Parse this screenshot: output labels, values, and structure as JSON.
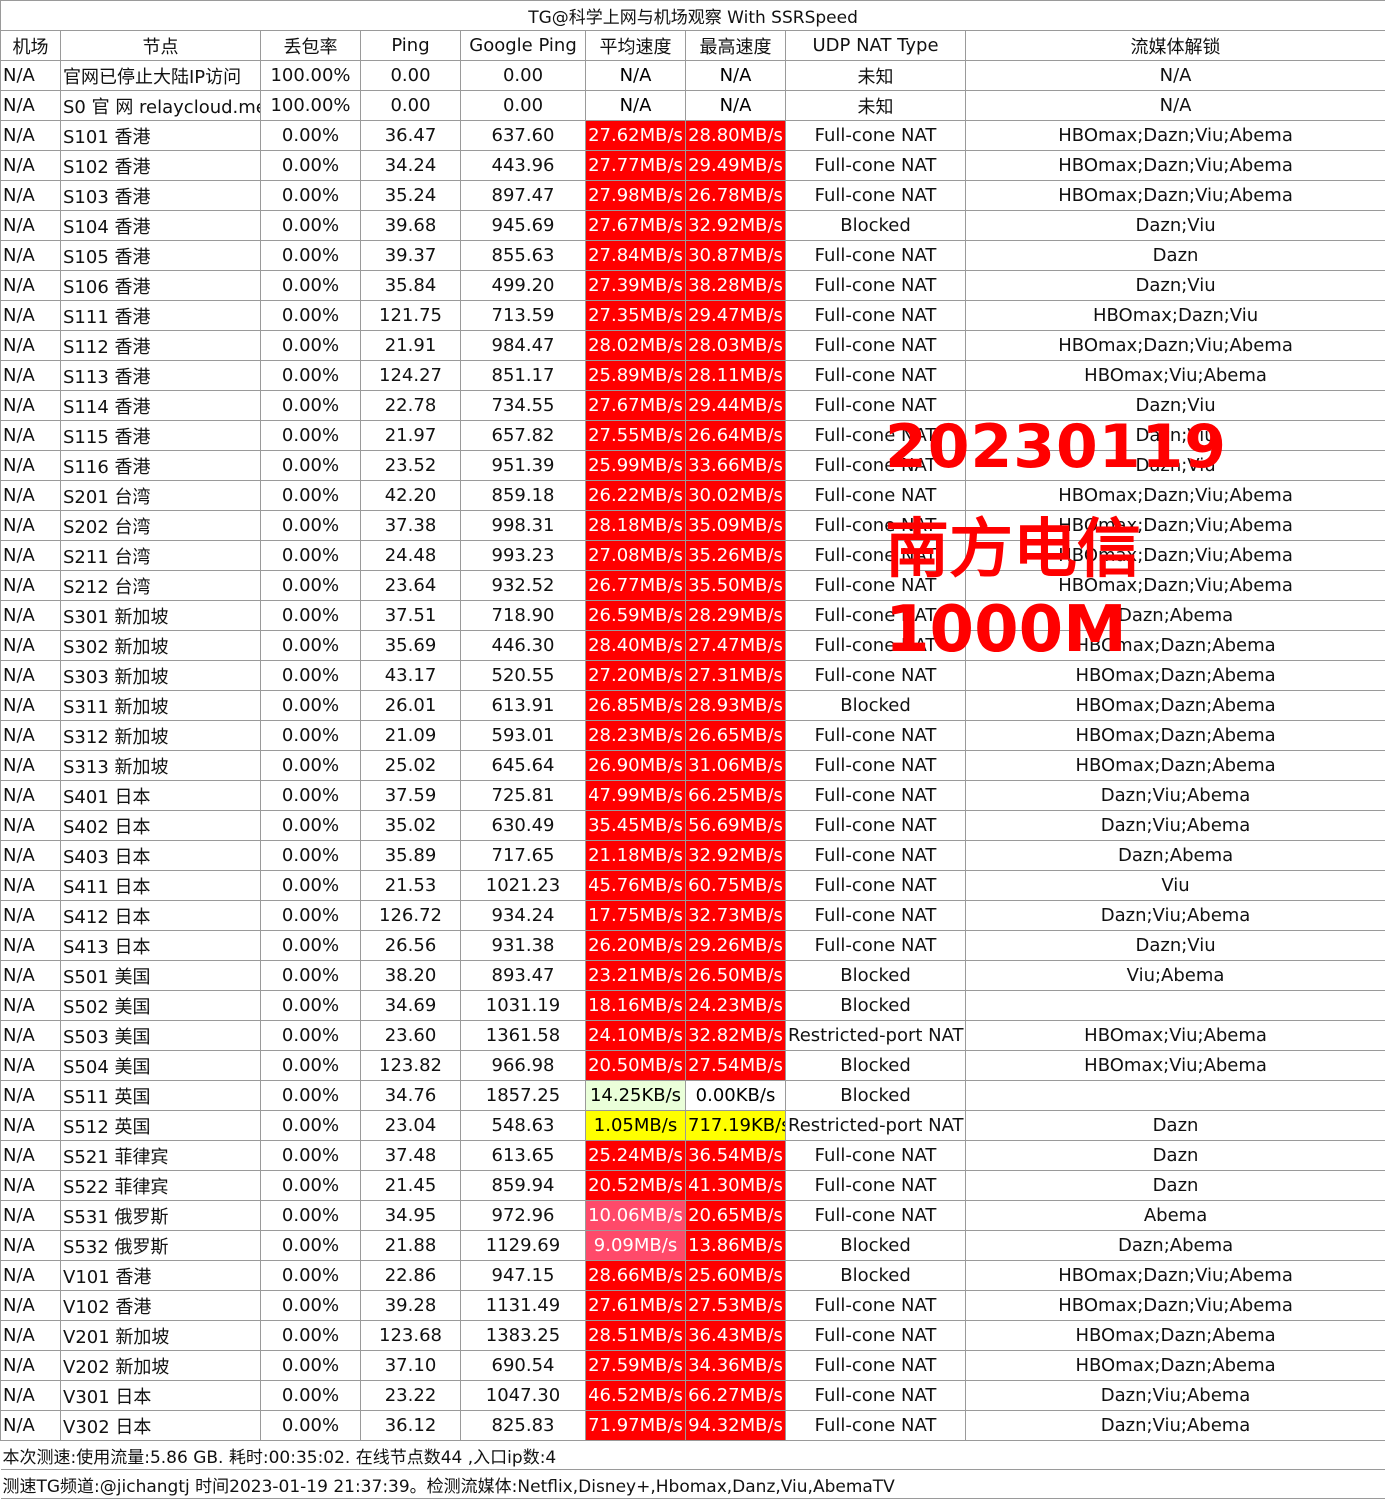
{
  "title": "TG@科学上网与机场观察 With SSRSpeed",
  "headers": [
    "机场",
    "节点",
    "丢包率",
    "Ping",
    "Google Ping",
    "平均速度",
    "最高速度",
    "UDP NAT Type",
    "流媒体解锁"
  ],
  "colors": {
    "red": "#ff0000",
    "pink": "#ff4a6a",
    "yellow": "#ffff00",
    "lightgreen": "#eaffd9",
    "watermark": "#ff0000"
  },
  "rows": [
    {
      "airport": "N/A",
      "node": "官网已停止大陆IP访问",
      "loss": "100.00%",
      "ping": "0.00",
      "gping": "0.00",
      "avg": "N/A",
      "max": "N/A",
      "nat": "未知",
      "media": "N/A",
      "avg_color": "plain",
      "max_color": "plain"
    },
    {
      "airport": "N/A",
      "node": "S0 官 网 relaycloud.me",
      "loss": "100.00%",
      "ping": "0.00",
      "gping": "0.00",
      "avg": "N/A",
      "max": "N/A",
      "nat": "未知",
      "media": "N/A",
      "avg_color": "plain",
      "max_color": "plain"
    },
    {
      "airport": "N/A",
      "node": "S101 香港",
      "loss": "0.00%",
      "ping": "36.47",
      "gping": "637.60",
      "avg": "27.62MB/s",
      "max": "28.80MB/s",
      "nat": "Full-cone NAT",
      "media": "HBOmax;Dazn;Viu;Abema",
      "avg_color": "red",
      "max_color": "red"
    },
    {
      "airport": "N/A",
      "node": "S102 香港",
      "loss": "0.00%",
      "ping": "34.24",
      "gping": "443.96",
      "avg": "27.77MB/s",
      "max": "29.49MB/s",
      "nat": "Full-cone NAT",
      "media": "HBOmax;Dazn;Viu;Abema",
      "avg_color": "red",
      "max_color": "red"
    },
    {
      "airport": "N/A",
      "node": "S103 香港",
      "loss": "0.00%",
      "ping": "35.24",
      "gping": "897.47",
      "avg": "27.98MB/s",
      "max": "26.78MB/s",
      "nat": "Full-cone NAT",
      "media": "HBOmax;Dazn;Viu;Abema",
      "avg_color": "red",
      "max_color": "red"
    },
    {
      "airport": "N/A",
      "node": "S104 香港",
      "loss": "0.00%",
      "ping": "39.68",
      "gping": "945.69",
      "avg": "27.67MB/s",
      "max": "32.92MB/s",
      "nat": "Blocked",
      "media": "Dazn;Viu",
      "avg_color": "red",
      "max_color": "red"
    },
    {
      "airport": "N/A",
      "node": "S105 香港",
      "loss": "0.00%",
      "ping": "39.37",
      "gping": "855.63",
      "avg": "27.84MB/s",
      "max": "30.87MB/s",
      "nat": "Full-cone NAT",
      "media": "Dazn",
      "avg_color": "red",
      "max_color": "red"
    },
    {
      "airport": "N/A",
      "node": "S106 香港",
      "loss": "0.00%",
      "ping": "35.84",
      "gping": "499.20",
      "avg": "27.39MB/s",
      "max": "38.28MB/s",
      "nat": "Full-cone NAT",
      "media": "Dazn;Viu",
      "avg_color": "red",
      "max_color": "red"
    },
    {
      "airport": "N/A",
      "node": "S111 香港",
      "loss": "0.00%",
      "ping": "121.75",
      "gping": "713.59",
      "avg": "27.35MB/s",
      "max": "29.47MB/s",
      "nat": "Full-cone NAT",
      "media": "HBOmax;Dazn;Viu",
      "avg_color": "red",
      "max_color": "red"
    },
    {
      "airport": "N/A",
      "node": "S112 香港",
      "loss": "0.00%",
      "ping": "21.91",
      "gping": "984.47",
      "avg": "28.02MB/s",
      "max": "28.03MB/s",
      "nat": "Full-cone NAT",
      "media": "HBOmax;Dazn;Viu;Abema",
      "avg_color": "red",
      "max_color": "red"
    },
    {
      "airport": "N/A",
      "node": "S113 香港",
      "loss": "0.00%",
      "ping": "124.27",
      "gping": "851.17",
      "avg": "25.89MB/s",
      "max": "28.11MB/s",
      "nat": "Full-cone NAT",
      "media": "HBOmax;Viu;Abema",
      "avg_color": "red",
      "max_color": "red"
    },
    {
      "airport": "N/A",
      "node": "S114 香港",
      "loss": "0.00%",
      "ping": "22.78",
      "gping": "734.55",
      "avg": "27.67MB/s",
      "max": "29.44MB/s",
      "nat": "Full-cone NAT",
      "media": "Dazn;Viu",
      "avg_color": "red",
      "max_color": "red"
    },
    {
      "airport": "N/A",
      "node": "S115 香港",
      "loss": "0.00%",
      "ping": "21.97",
      "gping": "657.82",
      "avg": "27.55MB/s",
      "max": "26.64MB/s",
      "nat": "Full-cone NAT",
      "media": "Dazn;Viu",
      "avg_color": "red",
      "max_color": "red"
    },
    {
      "airport": "N/A",
      "node": "S116 香港",
      "loss": "0.00%",
      "ping": "23.52",
      "gping": "951.39",
      "avg": "25.99MB/s",
      "max": "33.66MB/s",
      "nat": "Full-cone NAT",
      "media": "Dazn;Viu",
      "avg_color": "red",
      "max_color": "red"
    },
    {
      "airport": "N/A",
      "node": "S201 台湾",
      "loss": "0.00%",
      "ping": "42.20",
      "gping": "859.18",
      "avg": "26.22MB/s",
      "max": "30.02MB/s",
      "nat": "Full-cone NAT",
      "media": "HBOmax;Dazn;Viu;Abema",
      "avg_color": "red",
      "max_color": "red"
    },
    {
      "airport": "N/A",
      "node": "S202 台湾",
      "loss": "0.00%",
      "ping": "37.38",
      "gping": "998.31",
      "avg": "28.18MB/s",
      "max": "35.09MB/s",
      "nat": "Full-cone NAT",
      "media": "HBOmax;Dazn;Viu;Abema",
      "avg_color": "red",
      "max_color": "red"
    },
    {
      "airport": "N/A",
      "node": "S211 台湾",
      "loss": "0.00%",
      "ping": "24.48",
      "gping": "993.23",
      "avg": "27.08MB/s",
      "max": "35.26MB/s",
      "nat": "Full-cone NAT",
      "media": "HBOmax;Dazn;Viu;Abema",
      "avg_color": "red",
      "max_color": "red"
    },
    {
      "airport": "N/A",
      "node": "S212 台湾",
      "loss": "0.00%",
      "ping": "23.64",
      "gping": "932.52",
      "avg": "26.77MB/s",
      "max": "35.50MB/s",
      "nat": "Full-cone NAT",
      "media": "HBOmax;Dazn;Viu;Abema",
      "avg_color": "red",
      "max_color": "red"
    },
    {
      "airport": "N/A",
      "node": "S301 新加坡",
      "loss": "0.00%",
      "ping": "37.51",
      "gping": "718.90",
      "avg": "26.59MB/s",
      "max": "28.29MB/s",
      "nat": "Full-cone NAT",
      "media": "Dazn;Abema",
      "avg_color": "red",
      "max_color": "red"
    },
    {
      "airport": "N/A",
      "node": "S302 新加坡",
      "loss": "0.00%",
      "ping": "35.69",
      "gping": "446.30",
      "avg": "28.40MB/s",
      "max": "27.47MB/s",
      "nat": "Full-cone NAT",
      "media": "HBOmax;Dazn;Abema",
      "avg_color": "red",
      "max_color": "red"
    },
    {
      "airport": "N/A",
      "node": "S303 新加坡",
      "loss": "0.00%",
      "ping": "43.17",
      "gping": "520.55",
      "avg": "27.20MB/s",
      "max": "27.31MB/s",
      "nat": "Full-cone NAT",
      "media": "HBOmax;Dazn;Abema",
      "avg_color": "red",
      "max_color": "red"
    },
    {
      "airport": "N/A",
      "node": "S311 新加坡",
      "loss": "0.00%",
      "ping": "26.01",
      "gping": "613.91",
      "avg": "26.85MB/s",
      "max": "28.93MB/s",
      "nat": "Blocked",
      "media": "HBOmax;Dazn;Abema",
      "avg_color": "red",
      "max_color": "red"
    },
    {
      "airport": "N/A",
      "node": "S312 新加坡",
      "loss": "0.00%",
      "ping": "21.09",
      "gping": "593.01",
      "avg": "28.23MB/s",
      "max": "26.65MB/s",
      "nat": "Full-cone NAT",
      "media": "HBOmax;Dazn;Abema",
      "avg_color": "red",
      "max_color": "red"
    },
    {
      "airport": "N/A",
      "node": "S313 新加坡",
      "loss": "0.00%",
      "ping": "25.02",
      "gping": "645.64",
      "avg": "26.90MB/s",
      "max": "31.06MB/s",
      "nat": "Full-cone NAT",
      "media": "HBOmax;Dazn;Abema",
      "avg_color": "red",
      "max_color": "red"
    },
    {
      "airport": "N/A",
      "node": "S401 日本",
      "loss": "0.00%",
      "ping": "37.59",
      "gping": "725.81",
      "avg": "47.99MB/s",
      "max": "66.25MB/s",
      "nat": "Full-cone NAT",
      "media": "Dazn;Viu;Abema",
      "avg_color": "red",
      "max_color": "red"
    },
    {
      "airport": "N/A",
      "node": "S402 日本",
      "loss": "0.00%",
      "ping": "35.02",
      "gping": "630.49",
      "avg": "35.45MB/s",
      "max": "56.69MB/s",
      "nat": "Full-cone NAT",
      "media": "Dazn;Viu;Abema",
      "avg_color": "red",
      "max_color": "red"
    },
    {
      "airport": "N/A",
      "node": "S403 日本",
      "loss": "0.00%",
      "ping": "35.89",
      "gping": "717.65",
      "avg": "21.18MB/s",
      "max": "32.92MB/s",
      "nat": "Full-cone NAT",
      "media": "Dazn;Abema",
      "avg_color": "red",
      "max_color": "red"
    },
    {
      "airport": "N/A",
      "node": "S411 日本",
      "loss": "0.00%",
      "ping": "21.53",
      "gping": "1021.23",
      "avg": "45.76MB/s",
      "max": "60.75MB/s",
      "nat": "Full-cone NAT",
      "media": "Viu",
      "avg_color": "red",
      "max_color": "red"
    },
    {
      "airport": "N/A",
      "node": "S412 日本",
      "loss": "0.00%",
      "ping": "126.72",
      "gping": "934.24",
      "avg": "17.75MB/s",
      "max": "32.73MB/s",
      "nat": "Full-cone NAT",
      "media": "Dazn;Viu;Abema",
      "avg_color": "red",
      "max_color": "red"
    },
    {
      "airport": "N/A",
      "node": "S413 日本",
      "loss": "0.00%",
      "ping": "26.56",
      "gping": "931.38",
      "avg": "26.20MB/s",
      "max": "29.26MB/s",
      "nat": "Full-cone NAT",
      "media": "Dazn;Viu",
      "avg_color": "red",
      "max_color": "red"
    },
    {
      "airport": "N/A",
      "node": "S501 美国",
      "loss": "0.00%",
      "ping": "38.20",
      "gping": "893.47",
      "avg": "23.21MB/s",
      "max": "26.50MB/s",
      "nat": "Blocked",
      "media": "Viu;Abema",
      "avg_color": "red",
      "max_color": "red"
    },
    {
      "airport": "N/A",
      "node": "S502 美国",
      "loss": "0.00%",
      "ping": "34.69",
      "gping": "1031.19",
      "avg": "18.16MB/s",
      "max": "24.23MB/s",
      "nat": "Blocked",
      "media": "",
      "avg_color": "red",
      "max_color": "red"
    },
    {
      "airport": "N/A",
      "node": "S503 美国",
      "loss": "0.00%",
      "ping": "23.60",
      "gping": "1361.58",
      "avg": "24.10MB/s",
      "max": "32.82MB/s",
      "nat": "Restricted-port NAT",
      "media": "HBOmax;Viu;Abema",
      "avg_color": "red",
      "max_color": "red"
    },
    {
      "airport": "N/A",
      "node": "S504 美国",
      "loss": "0.00%",
      "ping": "123.82",
      "gping": "966.98",
      "avg": "20.50MB/s",
      "max": "27.54MB/s",
      "nat": "Blocked",
      "media": "HBOmax;Viu;Abema",
      "avg_color": "red",
      "max_color": "red"
    },
    {
      "airport": "N/A",
      "node": "S511 英国",
      "loss": "0.00%",
      "ping": "34.76",
      "gping": "1857.25",
      "avg": "14.25KB/s",
      "max": "0.00KB/s",
      "nat": "Blocked",
      "media": "",
      "avg_color": "lightgreen",
      "max_color": "plain"
    },
    {
      "airport": "N/A",
      "node": "S512 英国",
      "loss": "0.00%",
      "ping": "23.04",
      "gping": "548.63",
      "avg": "1.05MB/s",
      "max": "717.19KB/s",
      "nat": "Restricted-port NAT",
      "media": "Dazn",
      "avg_color": "yellow",
      "max_color": "yellow"
    },
    {
      "airport": "N/A",
      "node": "S521 菲律宾",
      "loss": "0.00%",
      "ping": "37.48",
      "gping": "613.65",
      "avg": "25.24MB/s",
      "max": "36.54MB/s",
      "nat": "Full-cone NAT",
      "media": "Dazn",
      "avg_color": "red",
      "max_color": "red"
    },
    {
      "airport": "N/A",
      "node": "S522 菲律宾",
      "loss": "0.00%",
      "ping": "21.45",
      "gping": "859.94",
      "avg": "20.52MB/s",
      "max": "41.30MB/s",
      "nat": "Full-cone NAT",
      "media": "Dazn",
      "avg_color": "red",
      "max_color": "red"
    },
    {
      "airport": "N/A",
      "node": "S531 俄罗斯",
      "loss": "0.00%",
      "ping": "34.95",
      "gping": "972.96",
      "avg": "10.06MB/s",
      "max": "20.65MB/s",
      "nat": "Full-cone NAT",
      "media": "Abema",
      "avg_color": "pink",
      "max_color": "red"
    },
    {
      "airport": "N/A",
      "node": "S532 俄罗斯",
      "loss": "0.00%",
      "ping": "21.88",
      "gping": "1129.69",
      "avg": "9.09MB/s",
      "max": "13.86MB/s",
      "nat": "Blocked",
      "media": "Dazn;Abema",
      "avg_color": "pink",
      "max_color": "red"
    },
    {
      "airport": "N/A",
      "node": "V101 香港",
      "loss": "0.00%",
      "ping": "22.86",
      "gping": "947.15",
      "avg": "28.66MB/s",
      "max": "25.60MB/s",
      "nat": "Blocked",
      "media": "HBOmax;Dazn;Viu;Abema",
      "avg_color": "red",
      "max_color": "red"
    },
    {
      "airport": "N/A",
      "node": "V102 香港",
      "loss": "0.00%",
      "ping": "39.28",
      "gping": "1131.49",
      "avg": "27.61MB/s",
      "max": "27.53MB/s",
      "nat": "Full-cone NAT",
      "media": "HBOmax;Dazn;Viu;Abema",
      "avg_color": "red",
      "max_color": "red"
    },
    {
      "airport": "N/A",
      "node": "V201 新加坡",
      "loss": "0.00%",
      "ping": "123.68",
      "gping": "1383.25",
      "avg": "28.51MB/s",
      "max": "36.43MB/s",
      "nat": "Full-cone NAT",
      "media": "HBOmax;Dazn;Abema",
      "avg_color": "red",
      "max_color": "red"
    },
    {
      "airport": "N/A",
      "node": "V202 新加坡",
      "loss": "0.00%",
      "ping": "37.10",
      "gping": "690.54",
      "avg": "27.59MB/s",
      "max": "34.36MB/s",
      "nat": "Full-cone NAT",
      "media": "HBOmax;Dazn;Abema",
      "avg_color": "red",
      "max_color": "red"
    },
    {
      "airport": "N/A",
      "node": "V301 日本",
      "loss": "0.00%",
      "ping": "23.22",
      "gping": "1047.30",
      "avg": "46.52MB/s",
      "max": "66.27MB/s",
      "nat": "Full-cone NAT",
      "media": "Dazn;Viu;Abema",
      "avg_color": "red",
      "max_color": "red"
    },
    {
      "airport": "N/A",
      "node": "V302 日本",
      "loss": "0.00%",
      "ping": "36.12",
      "gping": "825.83",
      "avg": "71.97MB/s",
      "max": "94.32MB/s",
      "nat": "Full-cone NAT",
      "media": "Dazn;Viu;Abema",
      "avg_color": "red",
      "max_color": "red"
    }
  ],
  "footer": {
    "line1": "本次测速:使用流量:5.86 GB. 耗时:00:35:02. 在线节点数44 ,入口ip数:4",
    "line2": "测速TG频道:@jichangtj 时间2023-01-19 21:37:39。检测流媒体:Netflix,Disney+,Hbomax,Danz,Viu,AbemaTV"
  },
  "watermark": {
    "date": "20230119",
    "isp": "南方电信1000M"
  }
}
